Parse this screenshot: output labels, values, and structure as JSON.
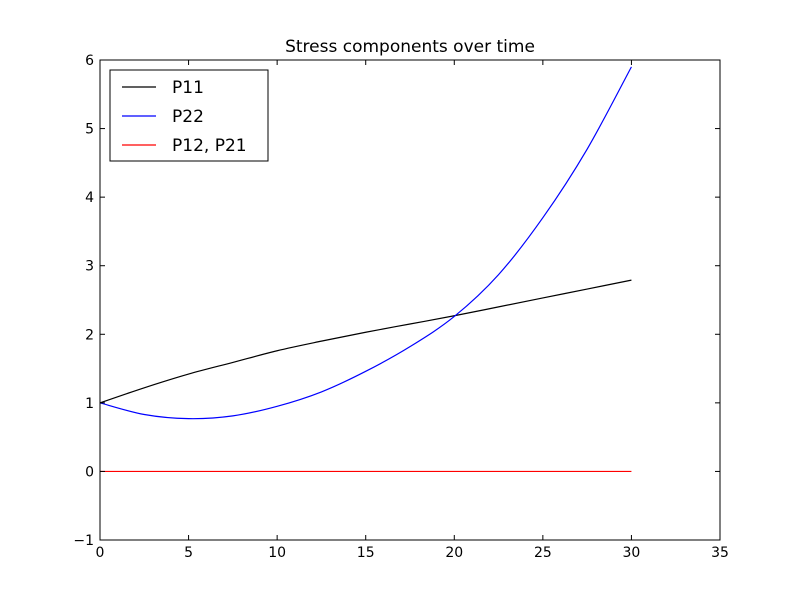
{
  "chart_data": {
    "type": "line",
    "title": "Stress components over time",
    "xlabel": "",
    "ylabel": "",
    "xlim": [
      0,
      35
    ],
    "ylim": [
      -1,
      6
    ],
    "xticks": [
      0,
      5,
      10,
      15,
      20,
      25,
      30,
      35
    ],
    "yticks": [
      -1,
      0,
      1,
      2,
      3,
      4,
      5,
      6
    ],
    "xtick_labels": [
      "0",
      "5",
      "10",
      "15",
      "20",
      "25",
      "30",
      "35"
    ],
    "ytick_labels": [
      "−1",
      "0",
      "1",
      "2",
      "3",
      "4",
      "5",
      "6"
    ],
    "grid": false,
    "legend_position": "top-left",
    "series": [
      {
        "name": "P11",
        "color": "#000000",
        "x": [
          0,
          2.5,
          5,
          7.5,
          10,
          12.5,
          15,
          17.5,
          20,
          22.5,
          25,
          27.5,
          30
        ],
        "y": [
          1.0,
          1.22,
          1.42,
          1.59,
          1.76,
          1.9,
          2.03,
          2.15,
          2.27,
          2.4,
          2.53,
          2.66,
          2.79
        ]
      },
      {
        "name": "P22",
        "color": "#0000ff",
        "x": [
          0,
          2.5,
          5,
          7.5,
          10,
          12.5,
          15,
          17.5,
          20,
          22.5,
          25,
          27.5,
          30
        ],
        "y": [
          1.0,
          0.83,
          0.77,
          0.81,
          0.95,
          1.16,
          1.46,
          1.82,
          2.26,
          2.87,
          3.7,
          4.7,
          5.9
        ]
      },
      {
        "name": "P12, P21",
        "color": "#ff0000",
        "x": [
          0,
          30
        ],
        "y": [
          0,
          0
        ]
      }
    ]
  }
}
